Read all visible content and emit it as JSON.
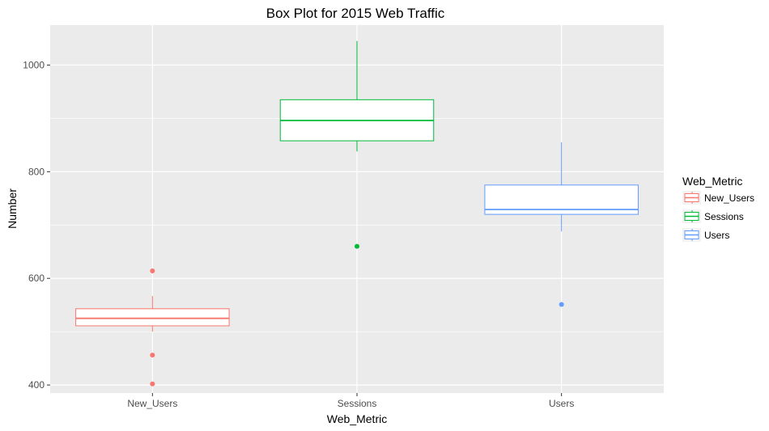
{
  "chart_data": {
    "type": "box",
    "title": "Box Plot for 2015 Web Traffic",
    "xlabel": "Web_Metric",
    "ylabel": "Number",
    "ylim": [
      385,
      1075
    ],
    "yticks": [
      400,
      600,
      800,
      1000
    ],
    "grid": true,
    "legend": {
      "title": "Web_Metric",
      "placement": "right",
      "entries": [
        "New_Users",
        "Sessions",
        "Users"
      ]
    },
    "categories": [
      "New_Users",
      "Sessions",
      "Users"
    ],
    "series": [
      {
        "name": "New_Users",
        "color": "#F8766D",
        "whisker_low": 500,
        "q1": 511,
        "median": 525,
        "q3": 543,
        "whisker_high": 567,
        "outliers": [
          614,
          456,
          402
        ]
      },
      {
        "name": "Sessions",
        "color": "#00BA38",
        "whisker_low": 838,
        "q1": 858,
        "median": 896,
        "q3": 935,
        "whisker_high": 1045,
        "outliers": [
          660
        ]
      },
      {
        "name": "Users",
        "color": "#619CFF",
        "whisker_low": 688,
        "q1": 720,
        "median": 729,
        "q3": 775,
        "whisker_high": 855,
        "outliers": [
          551
        ]
      }
    ]
  }
}
